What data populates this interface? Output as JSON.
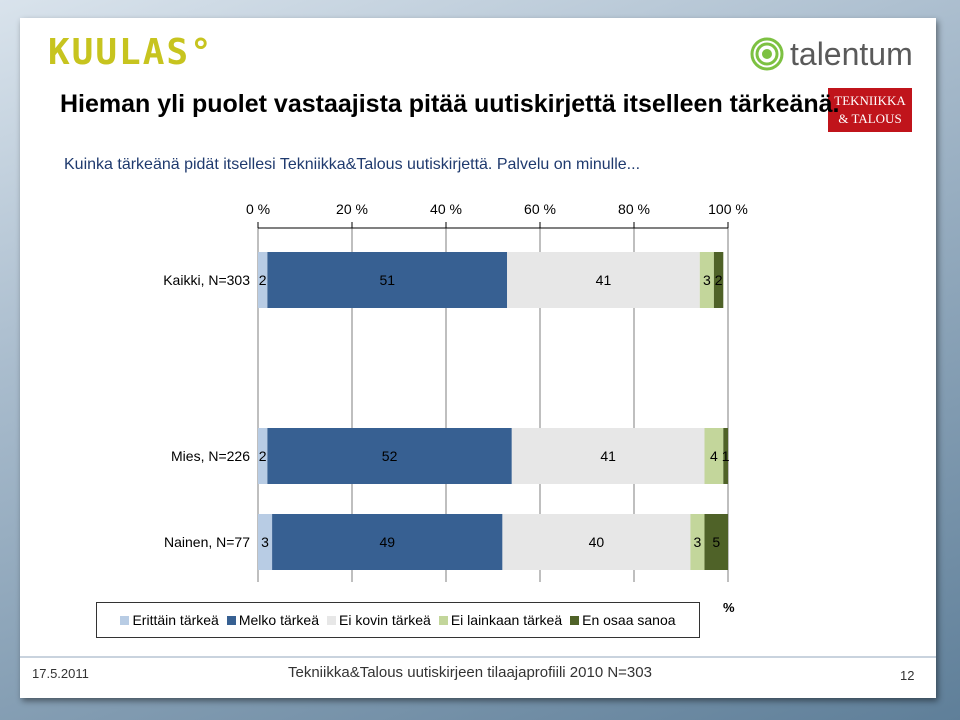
{
  "header": {
    "logo_kuulas": "KUULAS°",
    "logo_talentum": "talentum",
    "logo_tekniikka": [
      "TEKNIIKKA",
      "& TALOUS"
    ]
  },
  "headline": "Hieman yli puolet vastaajista pitää uutiskirjettä itselleen tärkeänä.",
  "question": "Kuinka tärkeänä pidät itsellesi Tekniikka&Talous uutiskirjettä. Palvelu on minulle...",
  "chart_data": {
    "type": "bar",
    "orientation": "horizontal-stacked-100",
    "x_ticks": [
      "0 %",
      "20 %",
      "40 %",
      "60 %",
      "80 %",
      "100 %"
    ],
    "xlim": [
      0,
      100
    ],
    "categories": [
      "Kaikki, N=303",
      "Mies, N=226",
      "Nainen, N=77"
    ],
    "series": [
      {
        "name": "Erittäin tärkeä",
        "color": "#b8cce4",
        "values": [
          2,
          2,
          3
        ]
      },
      {
        "name": "Melko tärkeä",
        "color": "#376092",
        "values": [
          51,
          52,
          49
        ]
      },
      {
        "name": "Ei kovin tärkeä",
        "color": "#e7e7e7",
        "values": [
          41,
          41,
          40
        ]
      },
      {
        "name": "Ei lainkaan tärkeä",
        "color": "#c3d69b",
        "values": [
          3,
          4,
          3
        ]
      },
      {
        "name": "En osaa sanoa",
        "color": "#4f6228",
        "values": [
          2,
          1,
          5
        ]
      }
    ],
    "legend_position": "bottom",
    "unit_label": "%",
    "grid": true
  },
  "footer": {
    "date": "17.5.2011",
    "title": "Tekniikka&Talous uutiskirjeen tilaajaprofiili 2010 N=303",
    "page": "12"
  }
}
